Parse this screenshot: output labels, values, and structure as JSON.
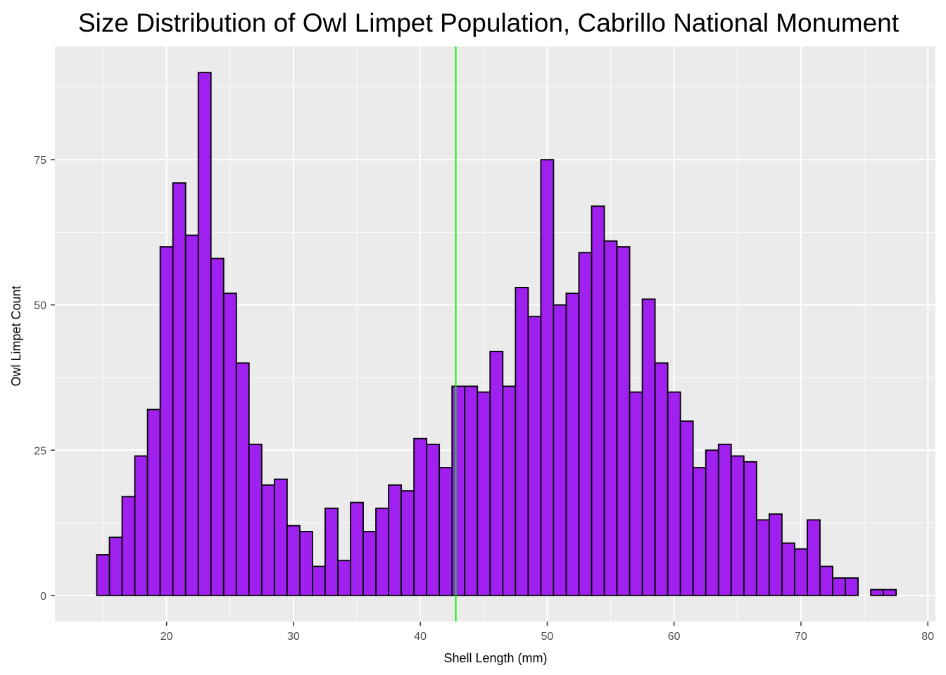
{
  "chart_data": {
    "type": "bar",
    "title": "Size Distribution of Owl Limpet Population, Cabrillo National Monument",
    "xlabel": "Shell Length (mm)",
    "ylabel": "Owl Limpet Count",
    "xlim": [
      11.2,
      80.6
    ],
    "ylim": [
      -4.5,
      94.5
    ],
    "x_ticks": [
      20,
      30,
      40,
      50,
      60,
      70,
      80
    ],
    "y_ticks": [
      0,
      25,
      50,
      75
    ],
    "grid": true,
    "bin_width": 1,
    "bin_centers": [
      15,
      16,
      17,
      18,
      19,
      20,
      21,
      22,
      23,
      24,
      25,
      26,
      27,
      28,
      29,
      30,
      31,
      32,
      33,
      34,
      35,
      36,
      37,
      38,
      39,
      40,
      41,
      42,
      43,
      44,
      45,
      46,
      47,
      48,
      49,
      50,
      51,
      52,
      53,
      54,
      55,
      56,
      57,
      58,
      59,
      60,
      61,
      62,
      63,
      64,
      65,
      66,
      67,
      68,
      69,
      70,
      71,
      72,
      73,
      74,
      75,
      76,
      77
    ],
    "values": [
      7,
      10,
      17,
      24,
      32,
      60,
      71,
      62,
      90,
      58,
      52,
      40,
      26,
      19,
      20,
      12,
      11,
      5,
      15,
      6,
      16,
      11,
      15,
      19,
      18,
      27,
      26,
      22,
      36,
      36,
      35,
      42,
      36,
      53,
      48,
      75,
      50,
      52,
      59,
      67,
      61,
      60,
      35,
      51,
      40,
      35,
      30,
      22,
      25,
      26,
      24,
      23,
      13,
      14,
      9,
      8,
      13,
      5,
      3,
      3,
      0,
      1,
      1
    ],
    "mean_line": 42.8,
    "colors": {
      "bar_fill": "#a020f0",
      "bar_stroke": "#000000",
      "mean_line": "#00ee00",
      "panel_bg": "#ebebeb",
      "grid": "#ffffff"
    }
  }
}
